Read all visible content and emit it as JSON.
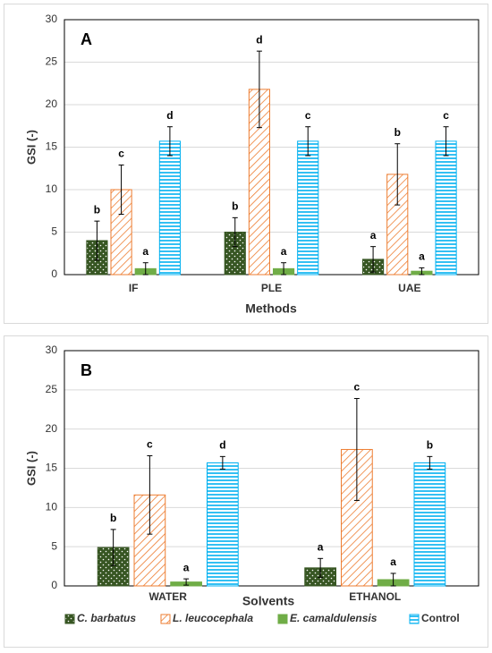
{
  "chart_data": [
    {
      "type": "bar",
      "panel_label": "A",
      "y_label": "GSI (-)",
      "x_label": "Methods",
      "categories": [
        "IF",
        "PLE",
        "UAE"
      ],
      "ylim": [
        0,
        30
      ],
      "yticks": [
        0,
        5,
        10,
        15,
        20,
        25,
        30
      ],
      "series": [
        {
          "color": "#375623",
          "hatch": "dots",
          "values": [
            4.0,
            5.0,
            1.8
          ],
          "errors": [
            2.3,
            1.7,
            1.5
          ],
          "letters": [
            "b",
            "b",
            "a"
          ]
        },
        {
          "color": "#ed7d31",
          "hatch": "diagonal",
          "values": [
            10.0,
            21.8,
            11.8
          ],
          "errors": [
            2.9,
            4.5,
            3.6
          ],
          "letters": [
            "c",
            "d",
            "b"
          ]
        },
        {
          "color": "#70ad47",
          "hatch": "none",
          "values": [
            0.7,
            0.7,
            0.4
          ],
          "errors": [
            0.7,
            0.7,
            0.4
          ],
          "letters": [
            "a",
            "a",
            "a"
          ]
        },
        {
          "color": "#00b0f0",
          "hatch": "horizontal",
          "values": [
            15.7,
            15.7,
            15.7
          ],
          "errors": [
            1.7,
            1.7,
            1.7
          ],
          "letters": [
            "d",
            "c",
            "c"
          ]
        }
      ]
    },
    {
      "type": "bar",
      "panel_label": "B",
      "y_label": "GSI (-)",
      "x_label": "Solvents",
      "categories": [
        "WATER",
        "ETHANOL"
      ],
      "ylim": [
        0,
        30
      ],
      "yticks": [
        0,
        5,
        10,
        15,
        20,
        25,
        30
      ],
      "legend": "bottom",
      "series": [
        {
          "name": "C. barbatus",
          "color": "#375623",
          "hatch": "dots",
          "values": [
            4.9,
            2.3
          ],
          "errors": [
            2.3,
            1.2
          ],
          "letters": [
            "b",
            "a"
          ]
        },
        {
          "name": "L. leucocephala",
          "color": "#ed7d31",
          "hatch": "diagonal",
          "values": [
            11.6,
            17.4
          ],
          "errors": [
            5.0,
            6.5
          ],
          "letters": [
            "c",
            "c"
          ]
        },
        {
          "name": "E. camaldulensis",
          "color": "#70ad47",
          "hatch": "none",
          "values": [
            0.5,
            0.8
          ],
          "errors": [
            0.4,
            0.8
          ],
          "letters": [
            "a",
            "a"
          ]
        },
        {
          "name": "Control",
          "color": "#00b0f0",
          "hatch": "horizontal",
          "values": [
            15.7,
            15.7
          ],
          "errors": [
            0.8,
            0.8
          ],
          "letters": [
            "d",
            "b"
          ]
        }
      ]
    }
  ]
}
